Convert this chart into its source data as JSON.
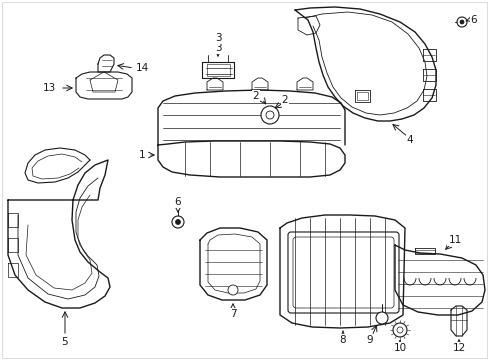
{
  "bg_color": "#ffffff",
  "line_color": "#1a1a1a",
  "fig_width": 4.89,
  "fig_height": 3.6,
  "dpi": 100,
  "border_color": "#cccccc"
}
